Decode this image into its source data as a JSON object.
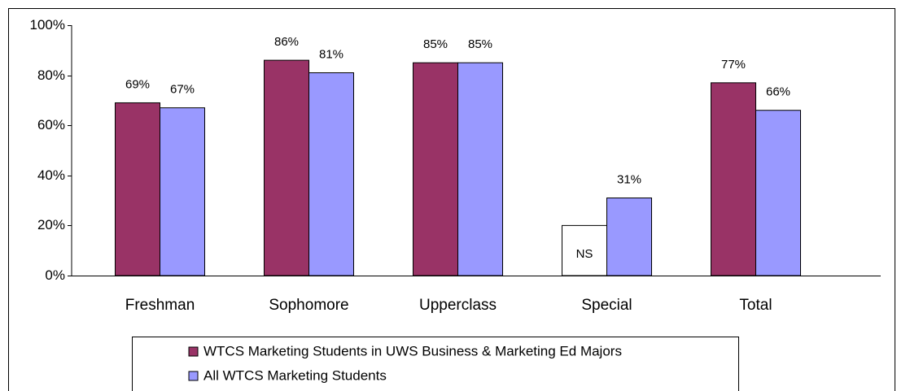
{
  "chart_data": {
    "type": "bar",
    "categories": [
      "Freshman",
      "Sophomore",
      "Upperclass",
      "Special",
      "Total"
    ],
    "series": [
      {
        "name": "WTCS Marketing Students in UWS Business & Marketing Ed Majors",
        "color": "#993366",
        "point_colors": [
          "#993366",
          "#993366",
          "#993366",
          "#ffffff",
          "#993366"
        ],
        "values": [
          69,
          86,
          85,
          20,
          77
        ],
        "value_labels": [
          "69%",
          "86%",
          "85%",
          "NS",
          "77%"
        ]
      },
      {
        "name": "All WTCS Marketing Students",
        "color": "#9999ff",
        "values": [
          67,
          81,
          85,
          31,
          66
        ],
        "value_labels": [
          "67%",
          "81%",
          "85%",
          "31%",
          "66%"
        ]
      }
    ],
    "ylim": [
      0,
      100
    ],
    "yticks": [
      {
        "value": 0,
        "label": "0%"
      },
      {
        "value": 20,
        "label": "20%"
      },
      {
        "value": 40,
        "label": "40%"
      },
      {
        "value": 60,
        "label": "60%"
      },
      {
        "value": 80,
        "label": "80%"
      },
      {
        "value": 100,
        "label": "100%"
      }
    ],
    "grid": false
  }
}
